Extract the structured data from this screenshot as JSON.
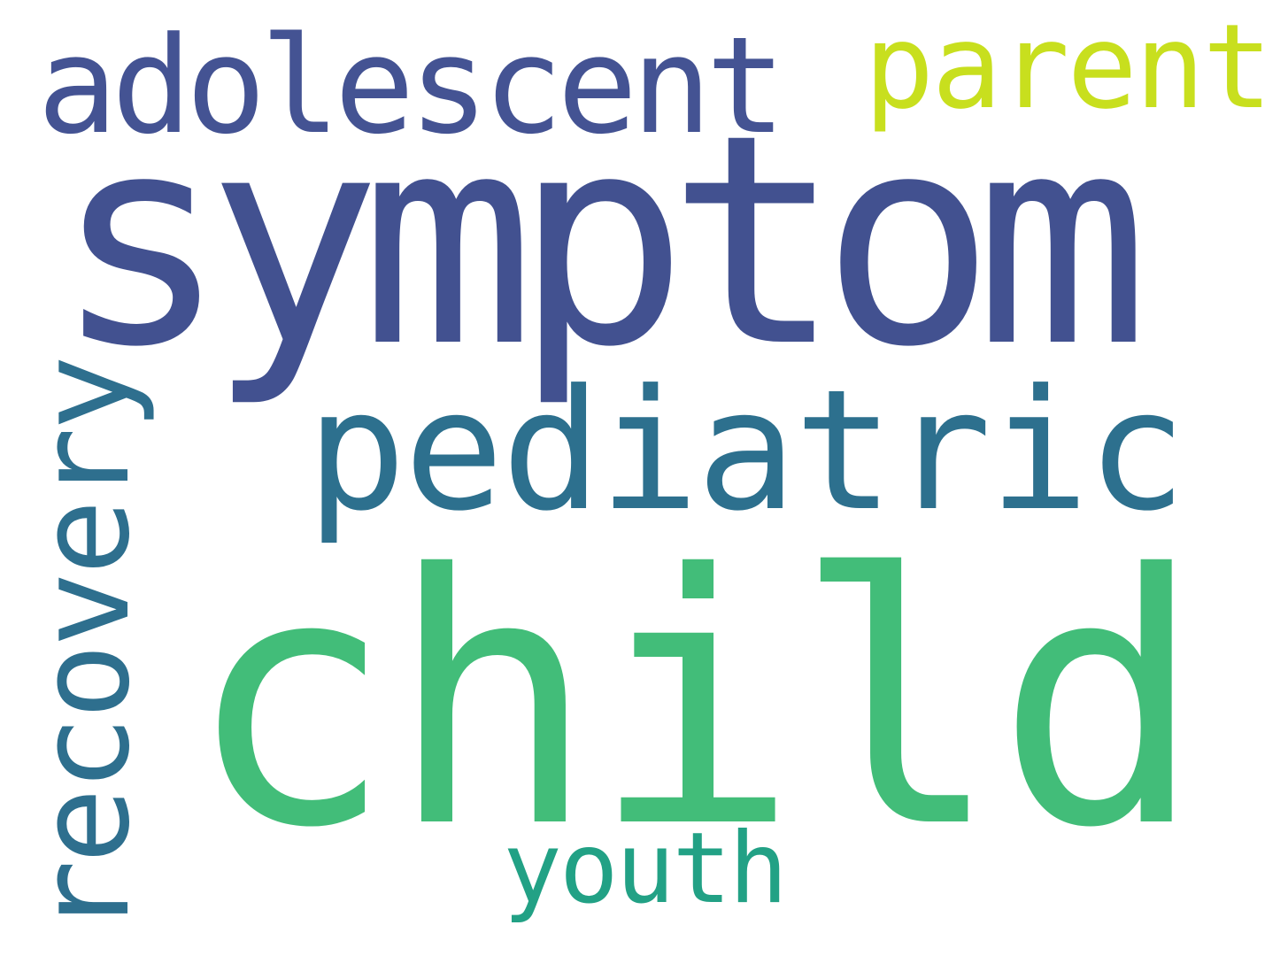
{
  "words": {
    "symptom": {
      "text": "symptom",
      "color": "#425190"
    },
    "child": {
      "text": "child",
      "color": "#42bd79"
    },
    "pediatric": {
      "text": "pediatric",
      "color": "#2d708e"
    },
    "adolescent": {
      "text": "adolescent",
      "color": "#445393"
    },
    "recovery": {
      "text": "recovery",
      "color": "#2e6f8e"
    },
    "parent": {
      "text": "parent",
      "color": "#c8df1e"
    },
    "youth": {
      "text": "youth",
      "color": "#22a185"
    }
  },
  "background_color": "#ffffff"
}
